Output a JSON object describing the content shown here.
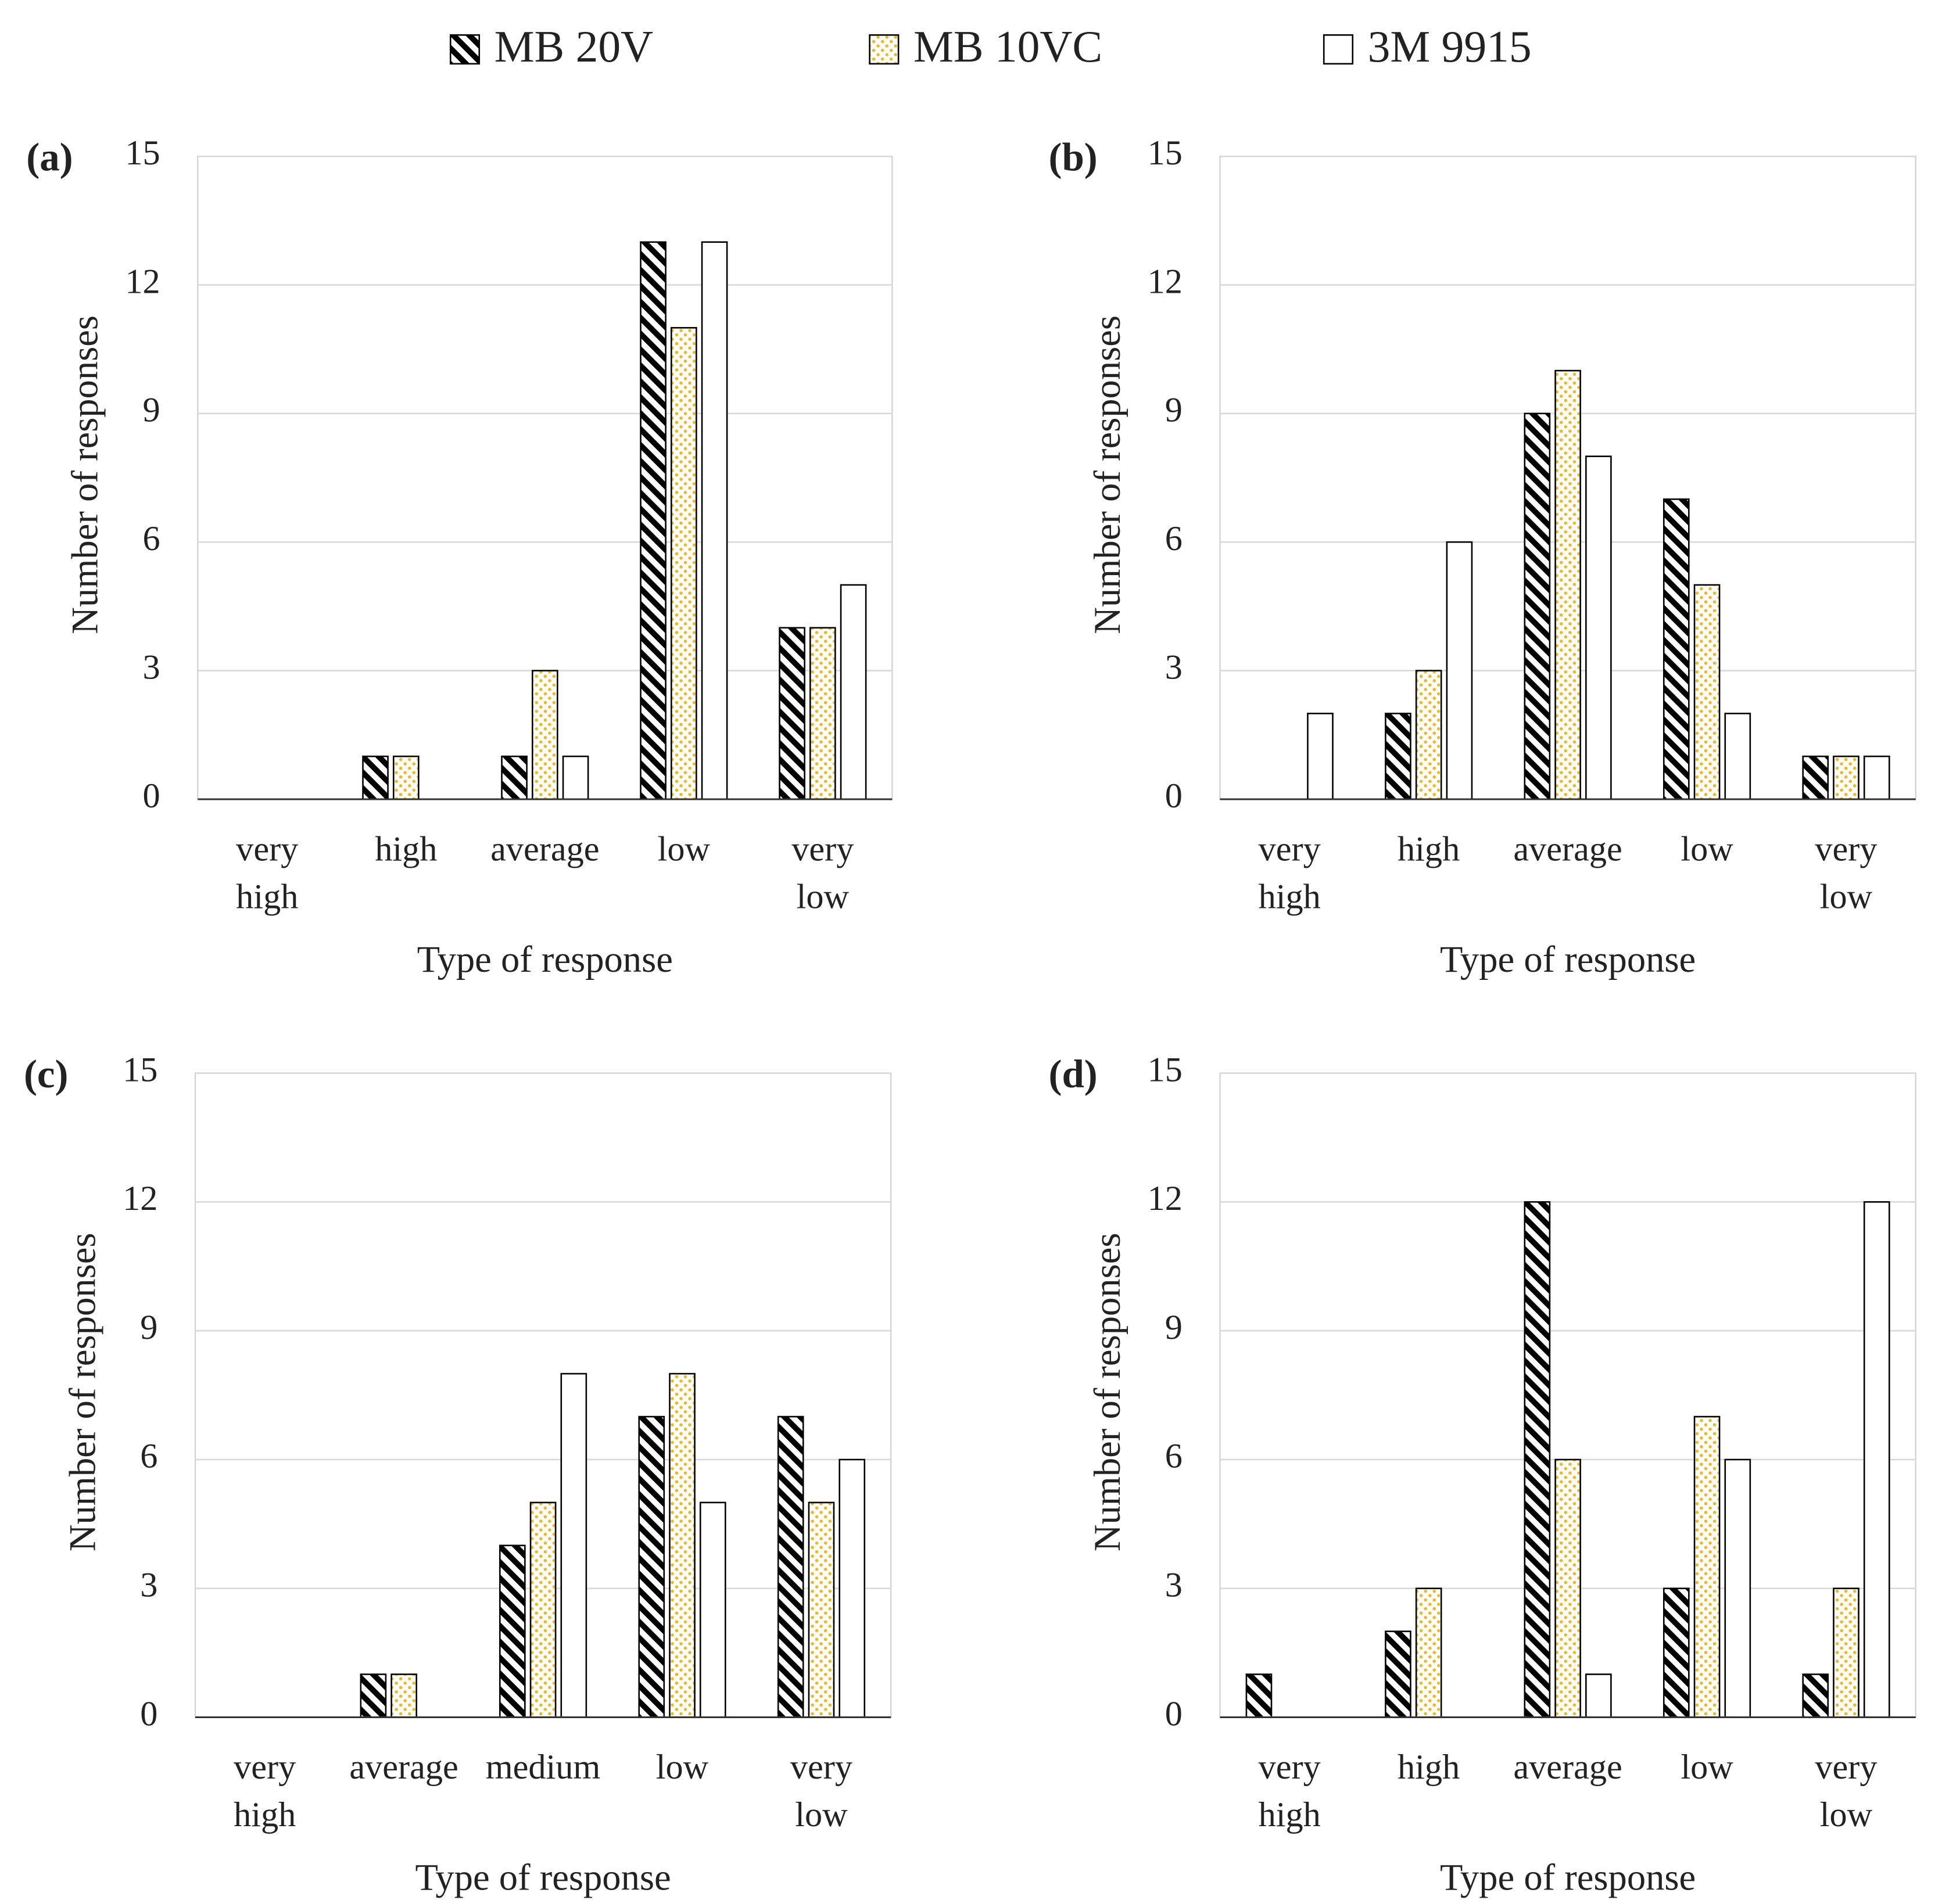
{
  "chart_data": [
    {
      "type": "bar",
      "panel_label": "(a)",
      "xlabel": "Type of response",
      "ylabel": "Number of responses",
      "categories": [
        "very\nhigh",
        "high",
        "average",
        "low",
        "very\nlow"
      ],
      "ylim": [
        0,
        15
      ],
      "yticks": [
        0,
        3,
        6,
        9,
        12,
        15
      ],
      "grid": true,
      "series": [
        {
          "name": "MB 20V",
          "color": "#000000",
          "pattern": "hatch",
          "values": [
            0,
            1,
            1,
            13,
            4
          ]
        },
        {
          "name": "MB 10VC",
          "color": "#e2b93b",
          "pattern": "dots",
          "values": [
            0,
            1,
            3,
            11,
            4
          ]
        },
        {
          "name": "3M 9915",
          "color": "#ffffff",
          "pattern": "none",
          "values": [
            0,
            0,
            1,
            13,
            5
          ]
        }
      ]
    },
    {
      "type": "bar",
      "panel_label": "(b)",
      "xlabel": "Type of response",
      "ylabel": "Number of responses",
      "categories": [
        "very\nhigh",
        "high",
        "average",
        "low",
        "very\nlow"
      ],
      "ylim": [
        0,
        15
      ],
      "yticks": [
        0,
        3,
        6,
        9,
        12,
        15
      ],
      "grid": true,
      "series": [
        {
          "color": "#000000",
          "pattern": "hatch",
          "values": [
            0,
            2,
            9,
            7,
            1
          ]
        },
        {
          "color": "#e2b93b",
          "pattern": "dots",
          "values": [
            0,
            3,
            10,
            5,
            1
          ]
        },
        {
          "color": "#ffffff",
          "pattern": "none",
          "values": [
            2,
            6,
            8,
            2,
            1
          ]
        }
      ]
    },
    {
      "type": "bar",
      "panel_label": "(c)",
      "xlabel": "Type of response",
      "ylabel": "Number of responses",
      "categories": [
        "very\nhigh",
        "average",
        "medium",
        "low",
        "very\nlow"
      ],
      "ylim": [
        0,
        15
      ],
      "yticks": [
        0,
        3,
        6,
        9,
        12,
        15
      ],
      "grid": true,
      "series": [
        {
          "color": "#000000",
          "pattern": "hatch",
          "values": [
            0,
            1,
            4,
            7,
            7
          ]
        },
        {
          "color": "#e2b93b",
          "pattern": "dots",
          "values": [
            0,
            1,
            5,
            8,
            5
          ]
        },
        {
          "color": "#ffffff",
          "pattern": "none",
          "values": [
            0,
            0,
            8,
            5,
            6
          ]
        }
      ]
    },
    {
      "type": "bar",
      "panel_label": "(d)",
      "xlabel": "Type of response",
      "ylabel": "Number of responses",
      "categories": [
        "very\nhigh",
        "high",
        "average",
        "low",
        "very\nlow"
      ],
      "ylim": [
        0,
        15
      ],
      "yticks": [
        0,
        3,
        6,
        9,
        12,
        15
      ],
      "grid": true,
      "series": [
        {
          "color": "#000000",
          "pattern": "hatch",
          "values": [
            1,
            2,
            12,
            3,
            1
          ]
        },
        {
          "color": "#e2b93b",
          "pattern": "dots",
          "values": [
            0,
            3,
            6,
            7,
            3
          ]
        },
        {
          "color": "#ffffff",
          "pattern": "none",
          "values": [
            0,
            0,
            1,
            6,
            12
          ]
        }
      ]
    }
  ]
}
